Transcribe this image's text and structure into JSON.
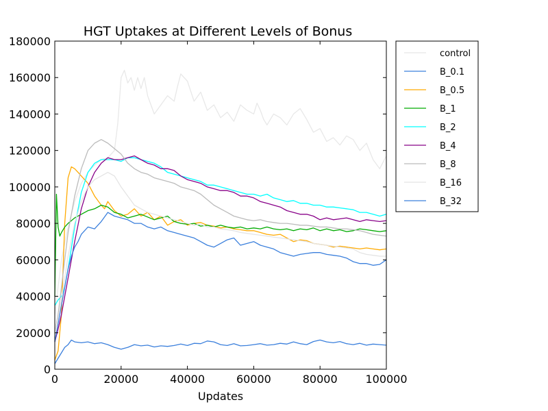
{
  "chart_data": {
    "type": "line",
    "title": "HGT Uptakes at Different Levels of Bonus",
    "xlabel": "Updates",
    "ylabel": "",
    "xlim": [
      0,
      100000
    ],
    "ylim": [
      0,
      180000
    ],
    "xticks": [
      0,
      20000,
      40000,
      60000,
      80000,
      100000
    ],
    "yticks": [
      0,
      20000,
      40000,
      60000,
      80000,
      100000,
      120000,
      140000,
      160000,
      180000
    ],
    "xtick_labels": [
      "0",
      "20000",
      "40000",
      "60000",
      "80000",
      "100000"
    ],
    "ytick_labels": [
      "0",
      "20000",
      "40000",
      "60000",
      "80000",
      "100000",
      "120000",
      "140000",
      "160000",
      "180000"
    ],
    "grid": false,
    "legend_position": "outside-right",
    "series": [
      {
        "name": "control",
        "color": "#e8e8e8",
        "x": [
          0,
          1000,
          2000,
          4000,
          6000,
          8000,
          10000,
          12000,
          14000,
          16000,
          18000,
          19000,
          20000,
          21000,
          22000,
          23000,
          24000,
          25000,
          26000,
          27000,
          28000,
          30000,
          32000,
          34000,
          36000,
          37000,
          38000,
          40000,
          42000,
          44000,
          46000,
          48000,
          50000,
          52000,
          54000,
          56000,
          58000,
          60000,
          61000,
          62000,
          63000,
          64000,
          66000,
          68000,
          70000,
          72000,
          74000,
          76000,
          78000,
          80000,
          82000,
          84000,
          86000,
          88000,
          90000,
          92000,
          94000,
          96000,
          98000,
          100000
        ],
        "y": [
          30000,
          45000,
          60000,
          78000,
          92000,
          102000,
          108000,
          112000,
          115000,
          116000,
          120000,
          135000,
          160000,
          164000,
          157000,
          160000,
          153000,
          160000,
          154000,
          160000,
          150000,
          140000,
          145000,
          150000,
          147000,
          155000,
          162000,
          158000,
          147000,
          152000,
          142000,
          145000,
          138000,
          141000,
          136000,
          145000,
          142000,
          140000,
          146000,
          142000,
          137000,
          134000,
          140000,
          138000,
          134000,
          140000,
          143000,
          137000,
          130000,
          132000,
          125000,
          127000,
          123000,
          128000,
          126000,
          120000,
          124000,
          115000,
          110000,
          117000
        ]
      },
      {
        "name": "B_0.1",
        "color": "#3a7fdc",
        "x": [
          0,
          1000,
          2000,
          3000,
          4000,
          5000,
          6000,
          8000,
          10000,
          12000,
          14000,
          16000,
          18000,
          20000,
          22000,
          24000,
          26000,
          28000,
          30000,
          32000,
          34000,
          36000,
          38000,
          40000,
          42000,
          44000,
          46000,
          48000,
          50000,
          52000,
          54000,
          56000,
          58000,
          60000,
          62000,
          64000,
          66000,
          68000,
          70000,
          72000,
          74000,
          76000,
          78000,
          80000,
          82000,
          84000,
          86000,
          88000,
          90000,
          92000,
          94000,
          96000,
          98000,
          100000
        ],
        "y": [
          3000,
          6000,
          9000,
          12000,
          13500,
          16000,
          15000,
          14500,
          15000,
          14000,
          14500,
          13500,
          12000,
          11000,
          12000,
          13500,
          12800,
          13200,
          12200,
          12800,
          12500,
          13000,
          13800,
          13000,
          14200,
          14000,
          15500,
          15000,
          13500,
          13000,
          14000,
          12800,
          13000,
          13500,
          14000,
          13200,
          13500,
          14200,
          13800,
          15000,
          14000,
          13500,
          15200,
          16000,
          15000,
          14500,
          15200,
          14000,
          13500,
          14200,
          13200,
          13800,
          13500,
          13200
        ]
      },
      {
        "name": "B_0.5",
        "color": "#ffaa00",
        "x": [
          0,
          1000,
          2000,
          3000,
          4000,
          5000,
          6000,
          7000,
          8000,
          10000,
          12000,
          14000,
          15000,
          16000,
          18000,
          20000,
          22000,
          24000,
          26000,
          28000,
          30000,
          32000,
          34000,
          36000,
          38000,
          40000,
          42000,
          44000,
          46000,
          48000,
          50000,
          52000,
          54000,
          56000,
          58000,
          60000,
          62000,
          64000,
          66000,
          68000,
          70000,
          72000,
          74000,
          76000,
          78000,
          80000,
          82000,
          84000,
          86000,
          88000,
          90000,
          92000,
          94000,
          96000,
          98000,
          100000
        ],
        "y": [
          5000,
          10000,
          30000,
          80000,
          105000,
          111000,
          110000,
          108000,
          106000,
          102000,
          95000,
          90000,
          88000,
          92000,
          87000,
          84000,
          85000,
          88000,
          84000,
          86000,
          82000,
          84000,
          79000,
          81000,
          82000,
          79000,
          80000,
          80500,
          79000,
          78500,
          77500,
          78000,
          77000,
          76500,
          76000,
          76000,
          75000,
          74000,
          73500,
          74000,
          72000,
          70000,
          71000,
          70500,
          69000,
          68500,
          68000,
          67000,
          67500,
          67000,
          66500,
          66000,
          66500,
          66000,
          65500,
          66000
        ]
      },
      {
        "name": "B_1",
        "color": "#00aa00",
        "x": [
          0,
          500,
          1000,
          1500,
          2000,
          3000,
          4000,
          6000,
          8000,
          10000,
          12000,
          14000,
          16000,
          18000,
          20000,
          22000,
          24000,
          26000,
          28000,
          30000,
          32000,
          34000,
          36000,
          38000,
          40000,
          42000,
          44000,
          46000,
          48000,
          50000,
          52000,
          54000,
          56000,
          58000,
          60000,
          62000,
          64000,
          66000,
          68000,
          70000,
          72000,
          74000,
          76000,
          78000,
          80000,
          82000,
          84000,
          86000,
          88000,
          90000,
          92000,
          94000,
          96000,
          98000,
          100000
        ],
        "y": [
          40000,
          96000,
          78000,
          73000,
          75000,
          78000,
          80000,
          83000,
          85000,
          87000,
          88000,
          90000,
          89000,
          86000,
          85000,
          83000,
          84000,
          85000,
          83500,
          82000,
          83000,
          84000,
          81000,
          80000,
          79500,
          80000,
          78500,
          79000,
          78000,
          79000,
          78000,
          77500,
          78000,
          77000,
          77500,
          77000,
          78000,
          77000,
          76500,
          77000,
          76000,
          77000,
          76500,
          77500,
          76000,
          77000,
          76000,
          76500,
          75500,
          76000,
          77000,
          76500,
          76000,
          75500,
          76000
        ]
      },
      {
        "name": "B_2",
        "color": "#00ffff",
        "x": [
          0,
          1000,
          2000,
          3000,
          4000,
          6000,
          8000,
          10000,
          12000,
          14000,
          16000,
          18000,
          20000,
          22000,
          24000,
          26000,
          28000,
          30000,
          32000,
          34000,
          36000,
          38000,
          40000,
          42000,
          44000,
          46000,
          48000,
          50000,
          52000,
          54000,
          56000,
          58000,
          60000,
          62000,
          64000,
          66000,
          68000,
          70000,
          72000,
          74000,
          76000,
          78000,
          80000,
          82000,
          84000,
          86000,
          88000,
          90000,
          92000,
          94000,
          96000,
          98000,
          100000
        ],
        "y": [
          35000,
          38000,
          40000,
          45000,
          55000,
          78000,
          97000,
          108000,
          113000,
          115000,
          115000,
          115000,
          114000,
          116000,
          116000,
          115000,
          114000,
          113000,
          111000,
          108000,
          107000,
          106000,
          105000,
          104000,
          103000,
          101000,
          101000,
          100000,
          99000,
          98000,
          97000,
          96000,
          96000,
          95000,
          96000,
          94000,
          93000,
          92000,
          92500,
          91000,
          91000,
          90000,
          90000,
          89000,
          89000,
          88500,
          88000,
          87500,
          86000,
          86000,
          85000,
          84000,
          85000
        ]
      },
      {
        "name": "B_4",
        "color": "#880088",
        "x": [
          0,
          1000,
          2000,
          3000,
          4000,
          6000,
          8000,
          10000,
          12000,
          14000,
          16000,
          18000,
          20000,
          22000,
          24000,
          26000,
          28000,
          30000,
          32000,
          34000,
          36000,
          38000,
          40000,
          42000,
          44000,
          46000,
          48000,
          50000,
          52000,
          54000,
          56000,
          58000,
          60000,
          62000,
          64000,
          66000,
          68000,
          70000,
          72000,
          74000,
          76000,
          78000,
          80000,
          82000,
          84000,
          86000,
          88000,
          90000,
          92000,
          94000,
          96000,
          98000,
          100000
        ],
        "y": [
          15000,
          22000,
          30000,
          40000,
          50000,
          70000,
          88000,
          100000,
          108000,
          113000,
          116000,
          115000,
          115000,
          116000,
          117000,
          115000,
          113000,
          112000,
          110000,
          110000,
          109000,
          106000,
          104000,
          103000,
          102000,
          100000,
          99000,
          98000,
          98000,
          97000,
          95000,
          95000,
          94000,
          92000,
          91000,
          90000,
          89000,
          87000,
          86000,
          85000,
          85000,
          84000,
          82000,
          83000,
          82000,
          82500,
          83000,
          82000,
          81000,
          82000,
          81500,
          81000,
          81500
        ]
      },
      {
        "name": "B_8",
        "color": "#bbbbbb",
        "x": [
          0,
          1000,
          2000,
          3000,
          4000,
          6000,
          8000,
          10000,
          12000,
          14000,
          16000,
          18000,
          20000,
          22000,
          24000,
          26000,
          28000,
          30000,
          32000,
          34000,
          36000,
          38000,
          40000,
          42000,
          44000,
          46000,
          48000,
          50000,
          52000,
          54000,
          56000,
          58000,
          60000,
          62000,
          64000,
          66000,
          68000,
          70000,
          72000,
          74000,
          76000,
          78000,
          80000,
          82000,
          84000,
          86000,
          88000,
          90000,
          92000,
          94000,
          96000,
          98000,
          100000
        ],
        "y": [
          20000,
          30000,
          45000,
          60000,
          75000,
          95000,
          110000,
          120000,
          124000,
          126000,
          124000,
          121000,
          118000,
          113000,
          110000,
          108000,
          107000,
          105000,
          104000,
          103000,
          102000,
          100000,
          99000,
          98000,
          96000,
          93000,
          90000,
          88000,
          86000,
          84000,
          83000,
          82000,
          81500,
          82000,
          81000,
          80500,
          80000,
          80000,
          79500,
          79000,
          79000,
          78500,
          78000,
          78000,
          77500,
          77000,
          77000,
          76500,
          76000,
          75000,
          74000,
          73500,
          73000
        ]
      },
      {
        "name": "B_16",
        "color": "#e4e4e4",
        "x": [
          0,
          1000,
          2000,
          3000,
          4000,
          6000,
          8000,
          10000,
          12000,
          14000,
          16000,
          18000,
          20000,
          22000,
          24000,
          26000,
          28000,
          30000,
          32000,
          34000,
          36000,
          38000,
          40000,
          42000,
          44000,
          46000,
          48000,
          50000,
          52000,
          54000,
          56000,
          58000,
          60000,
          62000,
          64000,
          66000,
          68000,
          70000,
          72000,
          74000,
          76000,
          78000,
          80000,
          82000,
          84000,
          86000,
          88000,
          90000,
          92000,
          94000,
          96000,
          98000,
          100000
        ],
        "y": [
          20000,
          28000,
          38000,
          50000,
          62000,
          80000,
          92000,
          100000,
          104000,
          106000,
          108000,
          106000,
          100000,
          95000,
          90000,
          88000,
          86000,
          85000,
          84000,
          83000,
          82000,
          81000,
          80000,
          79000,
          79500,
          78000,
          78000,
          77000,
          76500,
          76000,
          75000,
          74500,
          74000,
          73500,
          73000,
          72500,
          72000,
          71500,
          71000,
          70500,
          70000,
          69000,
          68500,
          68000,
          67500,
          67000,
          66500,
          66000,
          64000,
          63000,
          62500,
          62000,
          62000
        ]
      },
      {
        "name": "B_32",
        "color": "#3a7fdc",
        "x": [
          0,
          1000,
          2000,
          3000,
          4000,
          5000,
          6000,
          7000,
          8000,
          10000,
          12000,
          14000,
          16000,
          18000,
          20000,
          22000,
          24000,
          26000,
          28000,
          30000,
          32000,
          34000,
          36000,
          38000,
          40000,
          42000,
          44000,
          46000,
          48000,
          50000,
          52000,
          54000,
          56000,
          58000,
          60000,
          62000,
          64000,
          66000,
          68000,
          70000,
          72000,
          74000,
          76000,
          78000,
          80000,
          82000,
          84000,
          86000,
          88000,
          90000,
          92000,
          94000,
          96000,
          98000,
          100000
        ],
        "y": [
          15000,
          25000,
          35000,
          45000,
          55000,
          62000,
          67000,
          70000,
          74000,
          78000,
          77000,
          81000,
          86000,
          84000,
          83000,
          82000,
          80000,
          80000,
          78000,
          77000,
          78000,
          76000,
          75000,
          74000,
          73000,
          72000,
          70000,
          68000,
          67000,
          69000,
          71000,
          72000,
          68000,
          69000,
          70000,
          68000,
          67000,
          66000,
          64000,
          63000,
          62000,
          63000,
          63500,
          64000,
          64000,
          63000,
          62500,
          62000,
          61000,
          59000,
          58000,
          58000,
          57000,
          57500,
          60000
        ]
      }
    ]
  }
}
